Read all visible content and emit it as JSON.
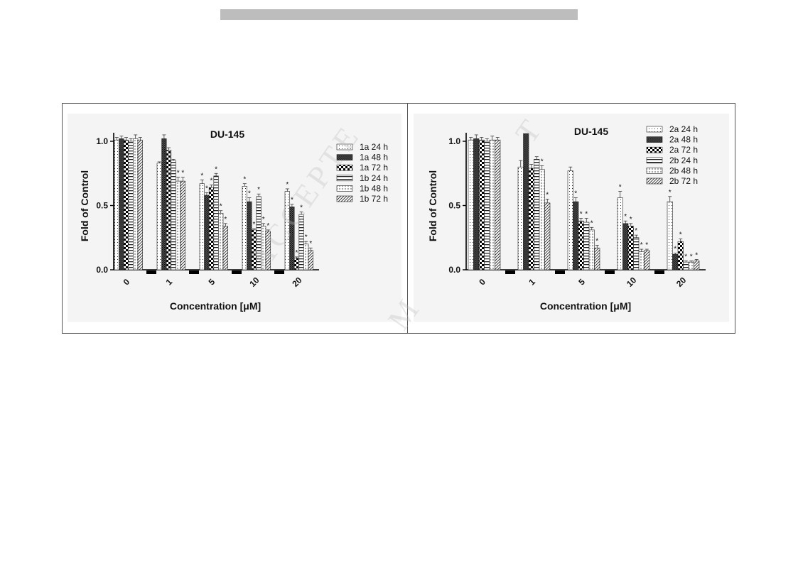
{
  "watermark": {
    "main": "ACCEPTE",
    "m": "M",
    "t": "T"
  },
  "chart_data": [
    {
      "type": "bar",
      "title": "DU-145",
      "xlabel": "Concentration [μM]",
      "ylabel": "Fold of  Control",
      "ylim": [
        0,
        1.05
      ],
      "yticks": [
        "0.0",
        "0.5",
        "1.0"
      ],
      "categories": [
        "0",
        "1",
        "5",
        "10",
        "20"
      ],
      "legend_position": "top-right",
      "series": [
        {
          "name": "1a 24 h",
          "pattern": "dots",
          "values": [
            1.01,
            0.83,
            0.67,
            0.65,
            0.61
          ],
          "errors": [
            0.02,
            0.01,
            0.03,
            0.02,
            0.02
          ],
          "sig": [
            false,
            false,
            true,
            true,
            true
          ]
        },
        {
          "name": "1a 48 h",
          "pattern": "dense-check",
          "values": [
            1.02,
            1.02,
            0.58,
            0.53,
            0.49
          ],
          "errors": [
            0.02,
            0.03,
            0.02,
            0.03,
            0.02
          ],
          "sig": [
            false,
            false,
            true,
            true,
            true
          ]
        },
        {
          "name": "1a 72 h",
          "pattern": "checker",
          "values": [
            1.01,
            0.93,
            0.64,
            0.31,
            0.09
          ],
          "errors": [
            0.02,
            0.02,
            0.02,
            0.01,
            0.01
          ],
          "sig": [
            false,
            false,
            true,
            true,
            true
          ]
        },
        {
          "name": "1b 24 h",
          "pattern": "hstripes",
          "values": [
            1.0,
            0.85,
            0.73,
            0.57,
            0.43
          ],
          "errors": [
            0.02,
            0.01,
            0.02,
            0.02,
            0.02
          ],
          "sig": [
            false,
            false,
            true,
            true,
            true
          ]
        },
        {
          "name": "1b 48 h",
          "pattern": "light-dots",
          "values": [
            1.02,
            0.69,
            0.44,
            0.34,
            0.2
          ],
          "errors": [
            0.03,
            0.03,
            0.02,
            0.02,
            0.02
          ],
          "sig": [
            false,
            true,
            true,
            true,
            true
          ]
        },
        {
          "name": "1b 72 h",
          "pattern": "diag",
          "values": [
            1.01,
            0.69,
            0.34,
            0.3,
            0.15
          ],
          "errors": [
            0.02,
            0.03,
            0.02,
            0.01,
            0.02
          ],
          "sig": [
            false,
            true,
            true,
            true,
            true
          ]
        }
      ]
    },
    {
      "type": "bar",
      "title": "DU-145",
      "xlabel": "Concentration [μM]",
      "ylabel": "Fold of  Control",
      "ylim": [
        0,
        1.05
      ],
      "yticks": [
        "0.0",
        "0.5",
        "1.0"
      ],
      "categories": [
        "0",
        "1",
        "5",
        "10",
        "20"
      ],
      "legend_position": "top-right",
      "series": [
        {
          "name": "2a 24 h",
          "pattern": "dots",
          "values": [
            1.01,
            0.8,
            0.77,
            0.56,
            0.53
          ],
          "errors": [
            0.02,
            0.05,
            0.03,
            0.05,
            0.04
          ],
          "sig": [
            false,
            false,
            false,
            true,
            true
          ]
        },
        {
          "name": "2a 48 h",
          "pattern": "dense-check",
          "values": [
            1.02,
            1.06,
            0.53,
            0.36,
            0.12
          ],
          "errors": [
            0.03,
            0.0,
            0.03,
            0.02,
            0.01
          ],
          "sig": [
            false,
            false,
            true,
            true,
            true
          ]
        },
        {
          "name": "2a 72 h",
          "pattern": "checker",
          "values": [
            1.01,
            0.79,
            0.38,
            0.34,
            0.22
          ],
          "errors": [
            0.02,
            0.03,
            0.02,
            0.02,
            0.02
          ],
          "sig": [
            false,
            false,
            true,
            true,
            true
          ]
        },
        {
          "name": "2b 24 h",
          "pattern": "hstripes",
          "values": [
            1.0,
            0.86,
            0.37,
            0.25,
            0.06
          ],
          "errors": [
            0.02,
            0.02,
            0.03,
            0.02,
            0.01
          ],
          "sig": [
            false,
            false,
            true,
            true,
            true
          ]
        },
        {
          "name": "2b 48 h",
          "pattern": "light-dots",
          "values": [
            1.01,
            0.78,
            0.31,
            0.14,
            0.06
          ],
          "errors": [
            0.03,
            0.03,
            0.02,
            0.02,
            0.01
          ],
          "sig": [
            false,
            true,
            true,
            true,
            true
          ]
        },
        {
          "name": "2b 72 h",
          "pattern": "diag",
          "values": [
            1.01,
            0.52,
            0.17,
            0.15,
            0.07
          ],
          "errors": [
            0.02,
            0.03,
            0.02,
            0.01,
            0.01
          ],
          "sig": [
            false,
            true,
            true,
            true,
            true
          ]
        }
      ]
    }
  ]
}
